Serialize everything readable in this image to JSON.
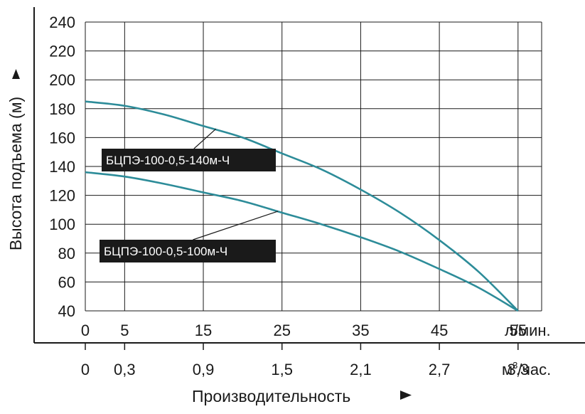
{
  "chart_data": {
    "type": "line",
    "xlabel": "Производительность",
    "ylabel": "Высота подъема (м)",
    "x_unit_top": "л/мин.",
    "x_unit_bottom_prefix": "м",
    "x_unit_bottom_sup": "3",
    "x_unit_bottom_suffix": "/час.",
    "xlim": [
      0,
      58
    ],
    "ylim": [
      40,
      240
    ],
    "grid": true,
    "x_ticks_top": [
      {
        "value": 0,
        "label": "0"
      },
      {
        "value": 5,
        "label": "5"
      },
      {
        "value": 15,
        "label": "15"
      },
      {
        "value": 25,
        "label": "25"
      },
      {
        "value": 35,
        "label": "35"
      },
      {
        "value": 45,
        "label": "45"
      },
      {
        "value": 55,
        "label": "55"
      }
    ],
    "x_ticks_bottom": [
      {
        "value": 0,
        "label": "0"
      },
      {
        "value": 5,
        "label": "0,3"
      },
      {
        "value": 15,
        "label": "0,9"
      },
      {
        "value": 25,
        "label": "1,5"
      },
      {
        "value": 35,
        "label": "2,1"
      },
      {
        "value": 45,
        "label": "2,7"
      },
      {
        "value": 55,
        "label": "3,3"
      }
    ],
    "y_ticks": [
      40,
      60,
      80,
      100,
      120,
      140,
      160,
      180,
      200,
      220,
      240
    ],
    "series": [
      {
        "name": "БЦПЭ-100-0,5-140м-Ч",
        "color": "#2d8c99",
        "x": [
          0,
          5,
          10,
          15,
          20,
          25,
          30,
          35,
          40,
          45,
          50,
          55
        ],
        "y": [
          185,
          182,
          176,
          168,
          160,
          149,
          138,
          124,
          108,
          89,
          67,
          40
        ],
        "label_point": [
          16.6,
          166
        ],
        "label_box": "left"
      },
      {
        "name": "БЦПЭ-100-0,5-100м-Ч",
        "color": "#2d8c99",
        "x": [
          0,
          5,
          10,
          15,
          20,
          25,
          30,
          35,
          40,
          45,
          50,
          55
        ],
        "y": [
          136,
          133,
          128,
          122,
          116,
          108,
          100,
          91,
          81,
          69,
          56,
          40
        ],
        "label_point": [
          24.5,
          109
        ],
        "label_box": "left"
      }
    ]
  }
}
